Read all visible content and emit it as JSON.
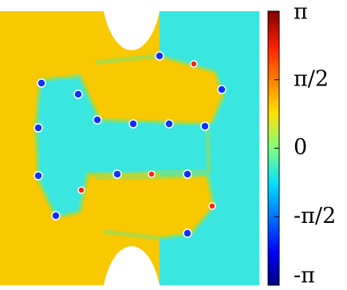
{
  "chart_data": {
    "type": "phase-map",
    "clim": [
      -3.1416,
      3.1416
    ],
    "cticks": [
      {
        "value": 3.1416,
        "label": "π"
      },
      {
        "value": 1.5708,
        "label": "π/2"
      },
      0,
      {
        "value": -1.5708,
        "label": "-π/2"
      },
      {
        "value": -3.1416,
        "label": "-π"
      }
    ]
  }
}
